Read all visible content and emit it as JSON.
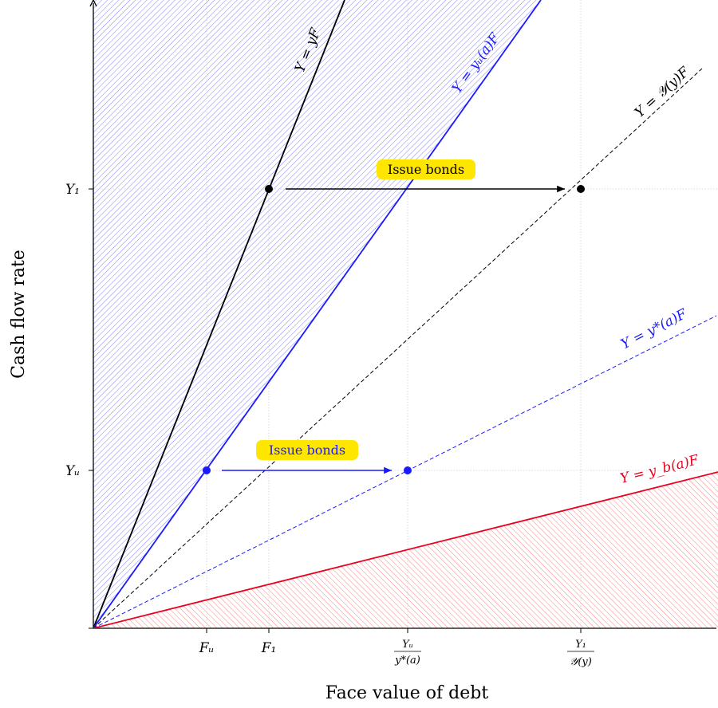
{
  "axes": {
    "xlabel": "Face value of debt",
    "ylabel": "Cash flow rate"
  },
  "ticks": {
    "x": {
      "fu": "Fᵤ",
      "f1": "F₁",
      "yu_frac_num": "Yᵤ",
      "yu_frac_den": "y*(a)",
      "y1_frac_num": "Y₁",
      "y1_frac_den": "𝒴(y)"
    },
    "y": {
      "y1": "Y₁",
      "yu": "Yᵤ"
    }
  },
  "lines": {
    "yf": "Y = yF",
    "yu_a": "Y = yᵤ(a)F",
    "cal_y": "Y = 𝒴(y)F",
    "ystar": "Y = y*(a)F",
    "yb": "Y = y_b(a)F"
  },
  "annotations": {
    "issue_top": "Issue bonds",
    "issue_bottom": "Issue bonds"
  },
  "colors": {
    "black": "#000000",
    "blue": "#1a1aff",
    "red": "#e8001c",
    "highlight": "#ffe600",
    "grid": "#cfcfcf",
    "hatch_blue": "#6f6fff",
    "hatch_red": "#ff6f6f"
  }
}
